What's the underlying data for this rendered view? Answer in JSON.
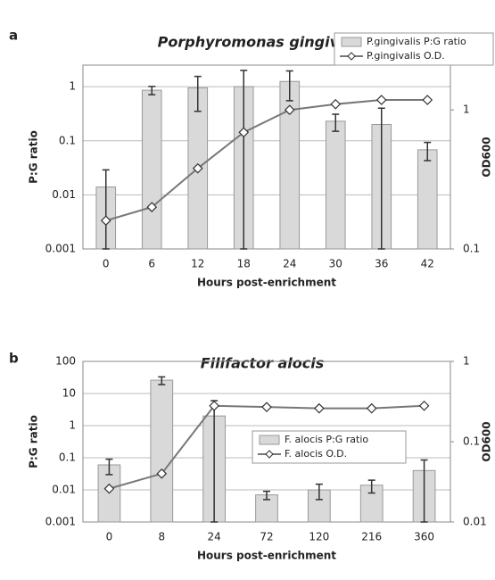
{
  "chart_data": [
    {
      "type": "bar",
      "label": "a",
      "title": "Porphyromonas gingivalis",
      "xlabel": "Hours post-enrichment",
      "ylabel": "P:G ratio",
      "y2label": "OD600",
      "categories": [
        "0",
        "6",
        "12",
        "18",
        "24",
        "30",
        "36",
        "42"
      ],
      "series": [
        {
          "name": "P.gingivalis P:G ratio",
          "type": "bar",
          "color": "#d9d9d9",
          "values": [
            0.014,
            0.86,
            0.95,
            1.0,
            1.25,
            0.23,
            0.2,
            0.068
          ],
          "errors": [
            0.015,
            0.15,
            0.6,
            1.0,
            0.7,
            0.08,
            0.2,
            0.025
          ]
        },
        {
          "name": "P.gingivalis O.D.",
          "type": "line",
          "axis": "y2",
          "color": "#777777",
          "values": [
            0.16,
            0.2,
            0.38,
            0.69,
            1.0,
            1.1,
            1.18,
            1.18
          ]
        }
      ],
      "ylim": [
        0.001,
        2.5
      ],
      "yticks": [
        0.001,
        0.01,
        0.1,
        1
      ],
      "y2lim": [
        0.1,
        2.1
      ],
      "y2ticks": [
        0.1,
        1
      ],
      "log_scale": true,
      "grid": true,
      "legend": "upper right"
    },
    {
      "type": "bar",
      "label": "b",
      "title": "Filifactor alocis",
      "xlabel": "Hours post-enrichment",
      "ylabel": "P:G ratio",
      "y2label": "OD600",
      "categories": [
        "0",
        "8",
        "24",
        "72",
        "120",
        "216",
        "360"
      ],
      "series": [
        {
          "name": "F. alocis P:G ratio",
          "type": "bar",
          "color": "#d9d9d9",
          "values": [
            0.06,
            26,
            2.0,
            0.007,
            0.01,
            0.014,
            0.04
          ],
          "errors": [
            0.03,
            7,
            4,
            0.002,
            0.005,
            0.006,
            0.045
          ]
        },
        {
          "name": "F. alocis O.D.",
          "type": "line",
          "axis": "y2",
          "color": "#777777",
          "values": [
            0.026,
            0.04,
            0.28,
            0.27,
            0.26,
            0.26,
            0.28
          ]
        }
      ],
      "ylim": [
        0.001,
        100
      ],
      "yticks": [
        0.001,
        0.01,
        0.1,
        1,
        10,
        100
      ],
      "y2lim": [
        0.01,
        1
      ],
      "y2ticks": [
        0.01,
        0.1,
        1
      ],
      "log_scale": true,
      "grid": true,
      "legend": "center right"
    }
  ]
}
